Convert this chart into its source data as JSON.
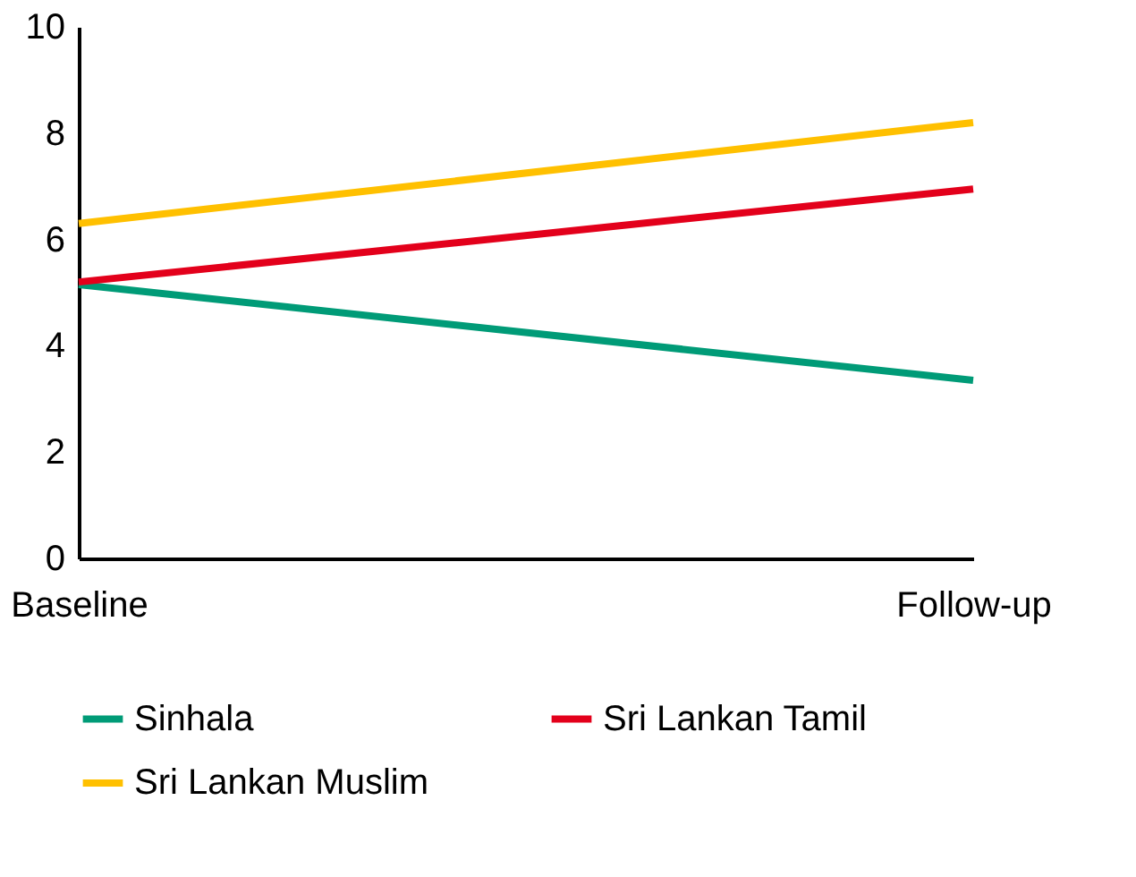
{
  "chart_data": {
    "type": "line",
    "categories": [
      "Baseline",
      "Follow-up"
    ],
    "series": [
      {
        "name": "Sinhala",
        "color": "#009b77",
        "values": [
          5.15,
          3.35
        ]
      },
      {
        "name": "Sri Lankan Tamil",
        "color": "#e3001b",
        "values": [
          5.2,
          6.95
        ]
      },
      {
        "name": "Sri Lankan Muslim",
        "color": "#ffc000",
        "values": [
          6.3,
          8.2
        ]
      }
    ],
    "ylim": [
      0,
      10
    ],
    "yticks": [
      0,
      2,
      4,
      6,
      8,
      10
    ],
    "grid": false,
    "legend": "bottom",
    "marker": "none",
    "line_style": "solid"
  }
}
